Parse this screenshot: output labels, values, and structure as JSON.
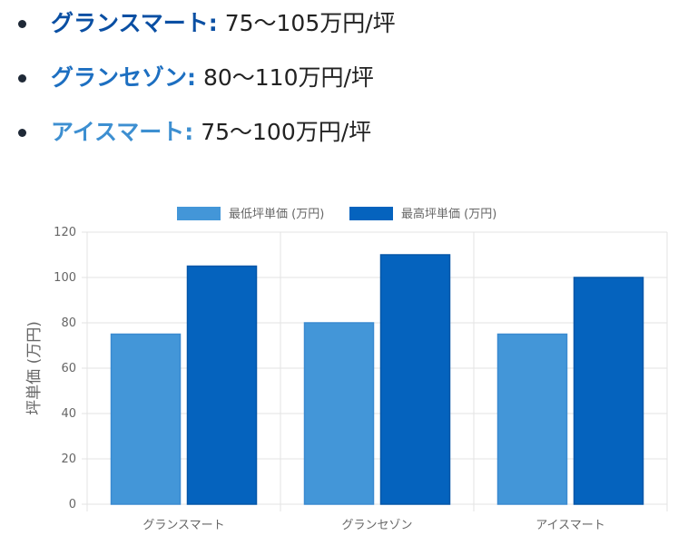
{
  "bullets": [
    {
      "name": "グランスマート:",
      "value": "75〜105万円/坪",
      "name_color": "#0a4fa3"
    },
    {
      "name": "グランセゾン:",
      "value": "80〜110万円/坪",
      "name_color": "#1d6fc1"
    },
    {
      "name": "アイスマート:",
      "value": "75〜100万円/坪",
      "name_color": "#3d8fd1"
    }
  ],
  "chart_data": {
    "type": "bar",
    "categories": [
      "グランスマート",
      "グランセゾン",
      "アイスマート"
    ],
    "series": [
      {
        "name": "最低坪単価 (万円)",
        "values": [
          75,
          80,
          75
        ],
        "color": "#4396d8"
      },
      {
        "name": "最高坪単価 (万円)",
        "values": [
          105,
          110,
          100
        ],
        "color": "#0563be"
      }
    ],
    "ylabel": "坪単価 (万円)",
    "ylim": [
      0,
      120
    ],
    "yticks": [
      "0",
      "20",
      "40",
      "60",
      "80",
      "100",
      "120"
    ],
    "grid": true,
    "legend": "top-center"
  }
}
